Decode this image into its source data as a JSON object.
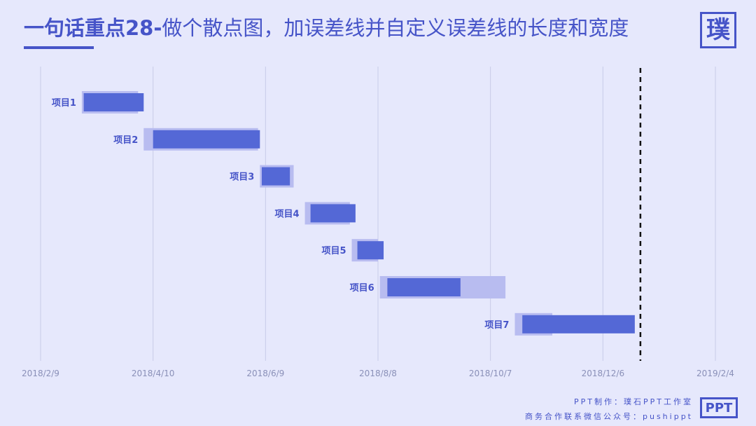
{
  "header": {
    "title_strong": "一句话重点28-",
    "title_rest": "做个散点图，加误差线并自定义误差线的长度和宽度",
    "logo_char": "璞"
  },
  "footer": {
    "line1": "PPT制作：璞石PPT工作室",
    "line2": "商务合作联系微信公众号：pushippt",
    "badge": "PPT"
  },
  "colors": {
    "bar": "#5468d6",
    "error_band": "#b8bcf0",
    "text": "#4654c8",
    "axis_text": "#8a90b8",
    "grid": "#c8cbe8",
    "background": "#e6e8fc"
  },
  "chart_data": {
    "type": "bar",
    "orientation": "horizontal",
    "x_axis_type": "date",
    "xlim": [
      "2018-02-09",
      "2019-02-04"
    ],
    "x_tick_labels": [
      "2018/2/9",
      "2018/4/10",
      "2018/6/9",
      "2018/8/8",
      "2018/10/7",
      "2018/12/6",
      "2019/2/4"
    ],
    "x_ticks": [
      "2018-02-09",
      "2018-04-10",
      "2018-06-09",
      "2018-08-08",
      "2018-10-07",
      "2018-12-06",
      "2019-02-04"
    ],
    "grid": true,
    "reference_line": {
      "x": "2018-12-26",
      "style": "dashed"
    },
    "tasks": [
      {
        "name": "项目1",
        "start": "2018-03-04",
        "end": "2018-04-05",
        "err_start": "2018-03-03",
        "err_end": "2018-04-02"
      },
      {
        "name": "项目2",
        "start": "2018-04-10",
        "end": "2018-06-06",
        "err_start": "2018-04-05",
        "err_end": "2018-06-05"
      },
      {
        "name": "项目3",
        "start": "2018-06-07",
        "end": "2018-06-22",
        "err_start": "2018-06-06",
        "err_end": "2018-06-24"
      },
      {
        "name": "项目4",
        "start": "2018-07-03",
        "end": "2018-07-27",
        "err_start": "2018-06-30",
        "err_end": "2018-07-24"
      },
      {
        "name": "项目5",
        "start": "2018-07-28",
        "end": "2018-08-11",
        "err_start": "2018-07-25",
        "err_end": "2018-08-08"
      },
      {
        "name": "项目6",
        "start": "2018-08-13",
        "end": "2018-09-21",
        "err_start": "2018-08-09",
        "err_end": "2018-10-15"
      },
      {
        "name": "项目7",
        "start": "2018-10-24",
        "end": "2018-12-23",
        "err_start": "2018-10-20",
        "err_end": "2018-11-09"
      }
    ]
  }
}
